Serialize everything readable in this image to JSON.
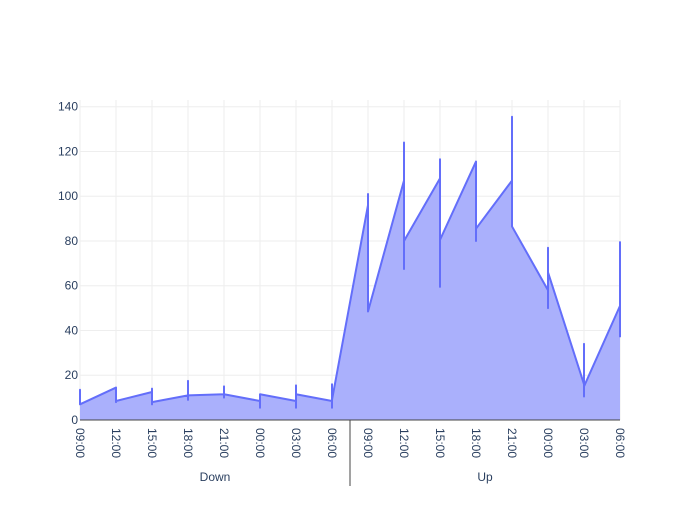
{
  "chart_data": {
    "type": "area",
    "x_groups": [
      {
        "label": "Down",
        "ticks": [
          "09:00",
          "12:00",
          "15:00",
          "18:00",
          "21:00",
          "00:00",
          "03:00",
          "06:00"
        ]
      },
      {
        "label": "Up",
        "ticks": [
          "09:00",
          "12:00",
          "15:00",
          "18:00",
          "21:00",
          "00:00",
          "03:00",
          "06:00"
        ]
      }
    ],
    "yticks": [
      0,
      20,
      40,
      60,
      80,
      100,
      120,
      140
    ],
    "ylim": [
      0,
      143
    ],
    "xlim_hours": [
      0,
      45
    ],
    "grid": true,
    "series": [
      {
        "color": "#636efa",
        "fill": "#aab0fc",
        "points": [
          [
            0,
            7
          ],
          [
            0,
            13.5
          ],
          [
            0,
            7
          ],
          [
            3,
            14.5
          ],
          [
            3,
            8
          ],
          [
            3,
            8.5
          ],
          [
            6,
            12.5
          ],
          [
            6,
            14
          ],
          [
            6,
            7
          ],
          [
            6,
            8
          ],
          [
            9,
            11
          ],
          [
            9,
            9
          ],
          [
            9,
            17.5
          ],
          [
            9,
            11
          ],
          [
            12,
            11.5
          ],
          [
            12,
            10
          ],
          [
            12,
            15
          ],
          [
            12,
            11.5
          ],
          [
            15,
            8.5
          ],
          [
            15,
            5.5
          ],
          [
            15,
            11.5
          ],
          [
            18,
            8.5
          ],
          [
            18,
            5.5
          ],
          [
            18,
            15.5
          ],
          [
            18,
            11.5
          ],
          [
            21,
            8.5
          ],
          [
            21,
            5.5
          ],
          [
            21,
            16
          ],
          [
            21,
            9
          ],
          [
            24,
            96
          ],
          [
            24,
            101
          ],
          [
            24,
            48.5
          ],
          [
            27,
            107
          ],
          [
            27,
            124
          ],
          [
            27,
            67.5
          ],
          [
            27,
            80
          ],
          [
            30,
            108
          ],
          [
            30,
            116.5
          ],
          [
            30,
            59.5
          ],
          [
            30,
            80.5
          ],
          [
            33,
            115.5
          ],
          [
            33,
            80
          ],
          [
            33,
            85.5
          ],
          [
            36,
            107
          ],
          [
            36,
            135.5
          ],
          [
            36,
            86.5
          ],
          [
            39,
            58
          ],
          [
            39,
            77
          ],
          [
            39,
            50
          ],
          [
            39,
            66
          ],
          [
            42,
            16
          ],
          [
            42,
            34
          ],
          [
            42,
            10.5
          ],
          [
            42,
            15
          ],
          [
            45,
            51
          ],
          [
            45,
            79.5
          ],
          [
            45,
            37
          ]
        ]
      }
    ]
  }
}
